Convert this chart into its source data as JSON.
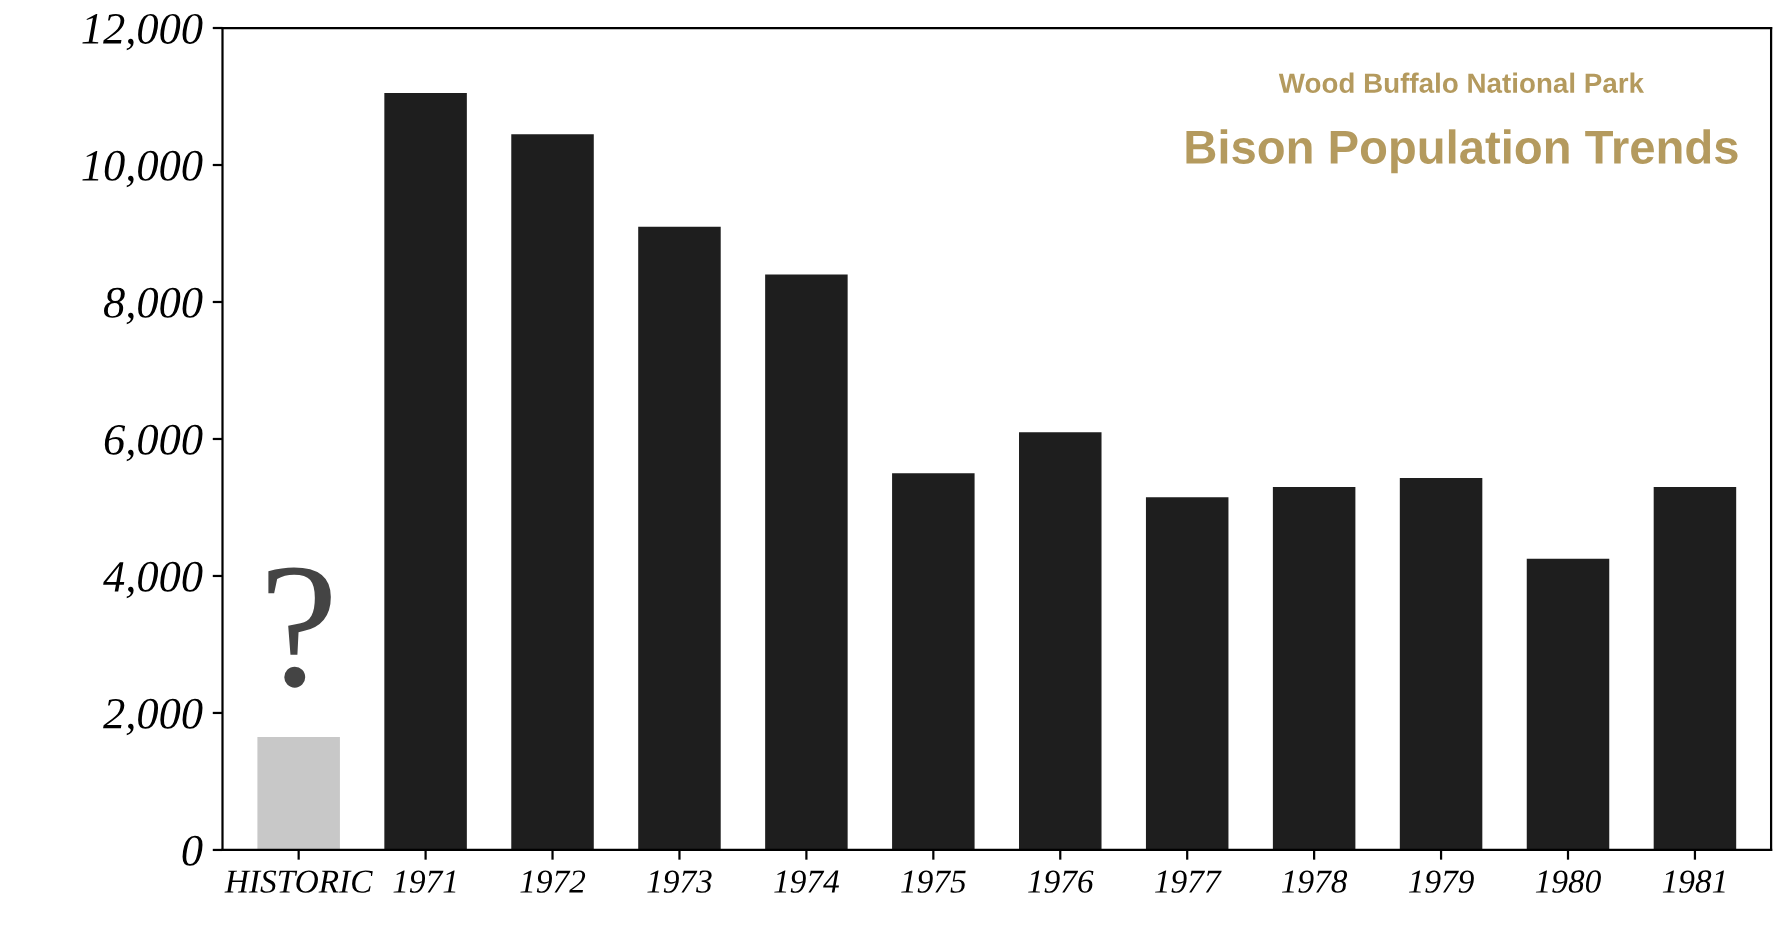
{
  "chart_data": {
    "type": "bar",
    "title": "Bison Population Trends",
    "subtitle": "Wood Buffalo National Park",
    "categories": [
      "HISTORIC",
      "1971",
      "1972",
      "1973",
      "1974",
      "1975",
      "1976",
      "1977",
      "1978",
      "1979",
      "1980",
      "1981"
    ],
    "values": [
      1650,
      11050,
      10450,
      9100,
      8400,
      5500,
      6100,
      5150,
      5300,
      5430,
      4250,
      5300
    ],
    "colors": [
      "#c8c8c8",
      "#1e1e1e",
      "#1e1e1e",
      "#1e1e1e",
      "#1e1e1e",
      "#1e1e1e",
      "#1e1e1e",
      "#1e1e1e",
      "#1e1e1e",
      "#1e1e1e",
      "#1e1e1e",
      "#1e1e1e"
    ],
    "annotations": [
      {
        "text": "?",
        "x": "HISTORIC",
        "y": 1650
      }
    ],
    "ylim": [
      0,
      12000
    ],
    "yticks": [
      {
        "value": 0,
        "label": "0"
      },
      {
        "value": 2000,
        "label": "2,000"
      },
      {
        "value": 4000,
        "label": "4,000"
      },
      {
        "value": 6000,
        "label": "6,000"
      },
      {
        "value": 8000,
        "label": "8,000"
      },
      {
        "value": 10000,
        "label": "10,000"
      },
      {
        "value": 12000,
        "label": "12,000"
      }
    ],
    "grid": false,
    "legend": false
  }
}
